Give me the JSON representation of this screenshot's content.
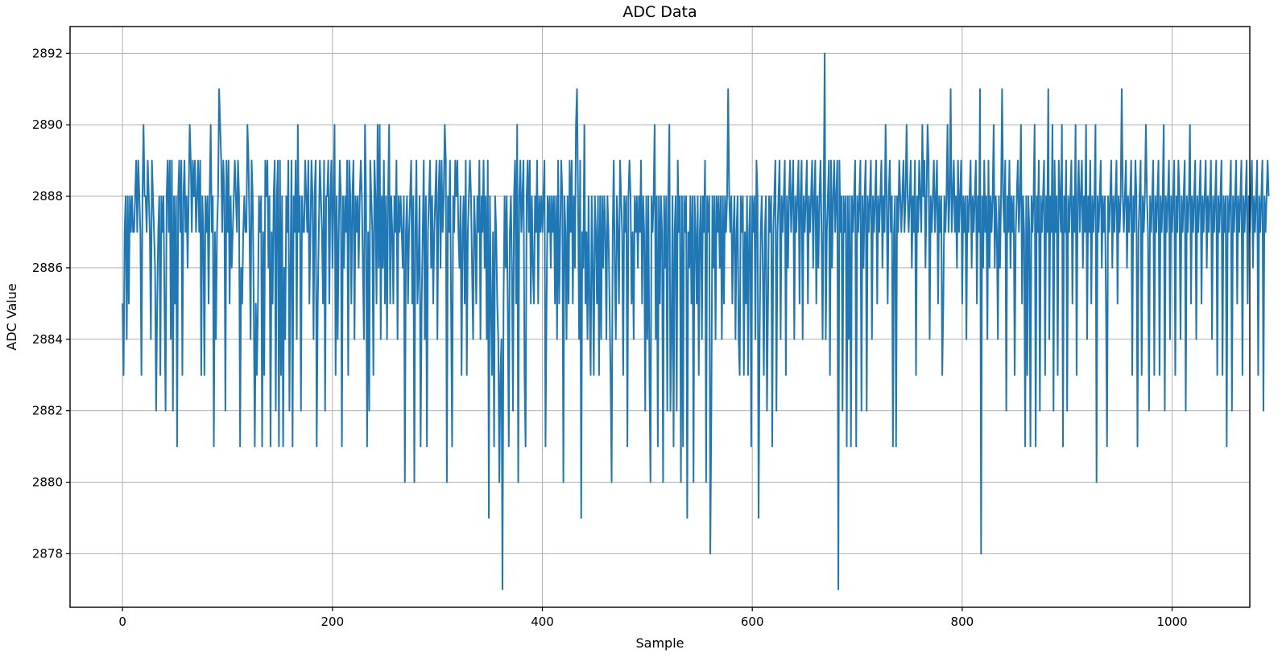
{
  "chart_data": {
    "type": "line",
    "title": "ADC Data",
    "xlabel": "Sample",
    "ylabel": "ADC Value",
    "xlim": [
      -50,
      1074
    ],
    "ylim": [
      2876.5,
      2892.75
    ],
    "xticks": [
      0,
      200,
      400,
      600,
      800,
      1000
    ],
    "yticks": [
      2878,
      2880,
      2882,
      2884,
      2886,
      2888,
      2890,
      2892
    ],
    "grid": true,
    "legend": "none",
    "colors": {
      "series": "#1f77b4"
    },
    "series": [
      {
        "x_start": 0,
        "x_step": 1,
        "values": [
          2885,
          2883,
          2887,
          2888,
          2884,
          2888,
          2885,
          2888,
          2887,
          2888,
          2887,
          2887,
          2888,
          2889,
          2887,
          2889,
          2888,
          2887,
          2883,
          2888,
          2890,
          2888,
          2888,
          2887,
          2889,
          2888,
          2887,
          2884,
          2889,
          2888,
          2887,
          2886,
          2882,
          2885,
          2887,
          2888,
          2883,
          2888,
          2887,
          2888,
          2885,
          2882,
          2888,
          2889,
          2887,
          2889,
          2884,
          2889,
          2882,
          2888,
          2885,
          2888,
          2881,
          2888,
          2889,
          2887,
          2889,
          2883,
          2888,
          2889,
          2887,
          2888,
          2886,
          2888,
          2890,
          2889,
          2887,
          2889,
          2888,
          2889,
          2887,
          2888,
          2889,
          2887,
          2889,
          2883,
          2888,
          2887,
          2883,
          2888,
          2887,
          2888,
          2885,
          2888,
          2890,
          2887,
          2888,
          2881,
          2887,
          2884,
          2887,
          2888,
          2891,
          2890,
          2889,
          2887,
          2889,
          2888,
          2882,
          2889,
          2887,
          2889,
          2885,
          2888,
          2886,
          2887,
          2888,
          2889,
          2888,
          2887,
          2889,
          2888,
          2881,
          2886,
          2885,
          2887,
          2888,
          2887,
          2887,
          2890,
          2889,
          2887,
          2884,
          2889,
          2888,
          2885,
          2881,
          2885,
          2883,
          2885,
          2888,
          2887,
          2888,
          2881,
          2887,
          2883,
          2889,
          2888,
          2889,
          2886,
          2888,
          2881,
          2887,
          2885,
          2888,
          2889,
          2882,
          2888,
          2889,
          2881,
          2889,
          2883,
          2888,
          2881,
          2886,
          2884,
          2888,
          2887,
          2889,
          2882,
          2886,
          2889,
          2881,
          2888,
          2887,
          2889,
          2884,
          2890,
          2887,
          2888,
          2882,
          2888,
          2887,
          2887,
          2889,
          2888,
          2887,
          2889,
          2885,
          2887,
          2889,
          2888,
          2884,
          2888,
          2889,
          2881,
          2885,
          2887,
          2889,
          2888,
          2887,
          2885,
          2889,
          2882,
          2888,
          2888,
          2889,
          2885,
          2888,
          2889,
          2886,
          2888,
          2890,
          2883,
          2888,
          2884,
          2887,
          2889,
          2888,
          2881,
          2888,
          2886,
          2888,
          2887,
          2889,
          2883,
          2889,
          2888,
          2885,
          2888,
          2889,
          2884,
          2888,
          2887,
          2888,
          2886,
          2888,
          2889,
          2888,
          2886,
          2884,
          2890,
          2888,
          2881,
          2887,
          2882,
          2889,
          2888,
          2887,
          2883,
          2889,
          2888,
          2885,
          2890,
          2886,
          2890,
          2884,
          2888,
          2886,
          2889,
          2885,
          2888,
          2884,
          2888,
          2890,
          2885,
          2888,
          2887,
          2885,
          2888,
          2887,
          2889,
          2884,
          2888,
          2887,
          2888,
          2887,
          2886,
          2888,
          2880,
          2887,
          2888,
          2885,
          2887,
          2888,
          2889,
          2885,
          2888,
          2880,
          2887,
          2889,
          2885,
          2886,
          2888,
          2881,
          2885,
          2887,
          2889,
          2884,
          2888,
          2881,
          2887,
          2888,
          2889,
          2886,
          2888,
          2885,
          2887,
          2888,
          2889,
          2884,
          2888,
          2889,
          2886,
          2889,
          2887,
          2888,
          2890,
          2889,
          2880,
          2888,
          2887,
          2889,
          2885,
          2881,
          2888,
          2887,
          2889,
          2888,
          2889,
          2887,
          2886,
          2888,
          2883,
          2887,
          2888,
          2885,
          2889,
          2883,
          2887,
          2888,
          2889,
          2888,
          2886,
          2884,
          2888,
          2887,
          2885,
          2888,
          2887,
          2889,
          2884,
          2888,
          2887,
          2889,
          2886,
          2888,
          2884,
          2889,
          2879,
          2888,
          2885,
          2883,
          2887,
          2881,
          2888,
          2887,
          2885,
          2884,
          2880,
          2883,
          2884,
          2877,
          2885,
          2888,
          2886,
          2888,
          2885,
          2881,
          2887,
          2888,
          2886,
          2882,
          2888,
          2889,
          2885,
          2890,
          2880,
          2888,
          2889,
          2887,
          2888,
          2889,
          2883,
          2881,
          2888,
          2889,
          2887,
          2889,
          2885,
          2888,
          2886,
          2885,
          2888,
          2887,
          2889,
          2885,
          2888,
          2887,
          2888,
          2887,
          2888,
          2889,
          2881,
          2885,
          2888,
          2887,
          2888,
          2886,
          2888,
          2887,
          2888,
          2885,
          2888,
          2884,
          2889,
          2885,
          2887,
          2889,
          2888,
          2880,
          2888,
          2887,
          2884,
          2888,
          2885,
          2889,
          2887,
          2889,
          2885,
          2888,
          2886,
          2890,
          2891,
          2888,
          2884,
          2889,
          2879,
          2887,
          2886,
          2890,
          2885,
          2887,
          2884,
          2888,
          2885,
          2883,
          2888,
          2886,
          2883,
          2888,
          2887,
          2885,
          2888,
          2883,
          2888,
          2884,
          2888,
          2886,
          2888,
          2887,
          2884,
          2888,
          2887,
          2885,
          2883,
          2880,
          2887,
          2889,
          2886,
          2884,
          2888,
          2887,
          2885,
          2889,
          2888,
          2887,
          2883,
          2888,
          2887,
          2888,
          2881,
          2888,
          2889,
          2888,
          2885,
          2887,
          2884,
          2888,
          2887,
          2888,
          2886,
          2888,
          2887,
          2889,
          2885,
          2888,
          2887,
          2882,
          2888,
          2884,
          2888,
          2883,
          2880,
          2888,
          2887,
          2888,
          2890,
          2884,
          2888,
          2881,
          2888,
          2885,
          2888,
          2887,
          2880,
          2888,
          2886,
          2888,
          2882,
          2888,
          2890,
          2882,
          2884,
          2888,
          2881,
          2887,
          2888,
          2882,
          2889,
          2887,
          2888,
          2880,
          2888,
          2881,
          2888,
          2887,
          2888,
          2879,
          2887,
          2886,
          2888,
          2885,
          2888,
          2880,
          2888,
          2887,
          2885,
          2888,
          2883,
          2887,
          2888,
          2884,
          2888,
          2887,
          2889,
          2880,
          2888,
          2887,
          2888,
          2878,
          2882,
          2888,
          2886,
          2888,
          2884,
          2888,
          2887,
          2888,
          2886,
          2888,
          2884,
          2888,
          2885,
          2888,
          2887,
          2888,
          2891,
          2888,
          2887,
          2888,
          2885,
          2887,
          2888,
          2884,
          2887,
          2888,
          2884,
          2883,
          2888,
          2887,
          2888,
          2883,
          2887,
          2885,
          2888,
          2883,
          2887,
          2888,
          2881,
          2888,
          2887,
          2888,
          2884,
          2889,
          2888,
          2879,
          2884,
          2887,
          2888,
          2886,
          2883,
          2887,
          2888,
          2882,
          2885,
          2888,
          2887,
          2888,
          2881,
          2887,
          2888,
          2889,
          2882,
          2887,
          2888,
          2889,
          2884,
          2888,
          2887,
          2888,
          2889,
          2883,
          2888,
          2886,
          2888,
          2889,
          2887,
          2888,
          2889,
          2884,
          2888,
          2887,
          2888,
          2889,
          2885,
          2888,
          2889,
          2884,
          2888,
          2887,
          2888,
          2889,
          2885,
          2888,
          2887,
          2888,
          2889,
          2886,
          2888,
          2889,
          2885,
          2888,
          2886,
          2888,
          2889,
          2887,
          2884,
          2888,
          2892,
          2884,
          2887,
          2888,
          2889,
          2883,
          2889,
          2886,
          2888,
          2889,
          2887,
          2888,
          2889,
          2877,
          2889,
          2887,
          2888,
          2882,
          2888,
          2887,
          2888,
          2881,
          2888,
          2884,
          2888,
          2881,
          2888,
          2887,
          2888,
          2889,
          2881,
          2888,
          2887,
          2888,
          2889,
          2882,
          2888,
          2886,
          2888,
          2889,
          2882,
          2888,
          2887,
          2888,
          2889,
          2884,
          2888,
          2887,
          2888,
          2889,
          2885,
          2888,
          2887,
          2888,
          2889,
          2886,
          2888,
          2887,
          2890,
          2888,
          2885,
          2888,
          2889,
          2887,
          2888,
          2881,
          2887,
          2888,
          2881,
          2888,
          2887,
          2889,
          2888,
          2887,
          2888,
          2889,
          2887,
          2888,
          2890,
          2888,
          2887,
          2888,
          2889,
          2886,
          2888,
          2887,
          2889,
          2883,
          2888,
          2887,
          2889,
          2888,
          2887,
          2890,
          2888,
          2889,
          2886,
          2888,
          2890,
          2889,
          2884,
          2888,
          2887,
          2888,
          2889,
          2887,
          2888,
          2889,
          2885,
          2888,
          2887,
          2888,
          2883,
          2885,
          2888,
          2887,
          2888,
          2890,
          2887,
          2888,
          2891,
          2887,
          2888,
          2889,
          2887,
          2888,
          2886,
          2889,
          2887,
          2888,
          2889,
          2885,
          2888,
          2887,
          2888,
          2884,
          2888,
          2887,
          2888,
          2889,
          2886,
          2888,
          2887,
          2888,
          2889,
          2885,
          2888,
          2887,
          2891,
          2878,
          2888,
          2886,
          2889,
          2887,
          2888,
          2884,
          2889,
          2886,
          2888,
          2887,
          2888,
          2890,
          2886,
          2888,
          2887,
          2884,
          2888,
          2886,
          2888,
          2891,
          2888,
          2887,
          2889,
          2882,
          2888,
          2887,
          2889,
          2886,
          2888,
          2887,
          2888,
          2883,
          2887,
          2888,
          2889,
          2887,
          2888,
          2890,
          2885,
          2888,
          2887,
          2881,
          2888,
          2883,
          2888,
          2887,
          2881,
          2888,
          2887,
          2888,
          2890,
          2881,
          2888,
          2887,
          2889,
          2882,
          2888,
          2887,
          2888,
          2889,
          2883,
          2888,
          2887,
          2891,
          2884,
          2888,
          2887,
          2890,
          2882,
          2889,
          2887,
          2888,
          2883,
          2889,
          2888,
          2887,
          2890,
          2881,
          2888,
          2887,
          2889,
          2882,
          2888,
          2887,
          2888,
          2889,
          2885,
          2888,
          2887,
          2890,
          2883,
          2888,
          2889,
          2887,
          2888,
          2889,
          2886,
          2888,
          2887,
          2890,
          2884,
          2888,
          2887,
          2889,
          2885,
          2888,
          2887,
          2888,
          2890,
          2880,
          2888,
          2887,
          2888,
          2889,
          2886,
          2888,
          2887,
          2888,
          2885,
          2881,
          2888,
          2887,
          2888,
          2889,
          2886,
          2888,
          2887,
          2888,
          2889,
          2885,
          2888,
          2887,
          2888,
          2891,
          2888,
          2887,
          2888,
          2889,
          2886,
          2888,
          2887,
          2888,
          2889,
          2883,
          2888,
          2887,
          2889,
          2888,
          2881,
          2887,
          2888,
          2889,
          2883,
          2888,
          2887,
          2888,
          2890,
          2888,
          2887,
          2882,
          2888,
          2887,
          2888,
          2889,
          2883,
          2888,
          2887,
          2888,
          2889,
          2883,
          2888,
          2887,
          2888,
          2890,
          2882,
          2888,
          2887,
          2888,
          2889,
          2884,
          2888,
          2887,
          2888,
          2889,
          2883,
          2888,
          2887,
          2889,
          2888,
          2884,
          2888,
          2887,
          2888,
          2889,
          2882,
          2888,
          2887,
          2888,
          2890,
          2885,
          2888,
          2887,
          2888,
          2889,
          2884,
          2888,
          2887,
          2888,
          2889,
          2885,
          2888,
          2887,
          2888,
          2889,
          2886,
          2888,
          2887,
          2888,
          2889,
          2884,
          2888,
          2887,
          2888,
          2889,
          2883,
          2888,
          2887,
          2888,
          2889,
          2883,
          2888,
          2887,
          2888,
          2881,
          2888,
          2887,
          2888,
          2889,
          2882,
          2888,
          2887,
          2888,
          2889,
          2885,
          2888,
          2887,
          2888,
          2889,
          2883,
          2888,
          2887,
          2888,
          2889,
          2885,
          2888,
          2887,
          2888,
          2889,
          2886,
          2888,
          2887,
          2888,
          2889,
          2883,
          2888,
          2887,
          2888,
          2889,
          2882,
          2888,
          2887,
          2888,
          2889,
          2888
        ]
      }
    ]
  }
}
